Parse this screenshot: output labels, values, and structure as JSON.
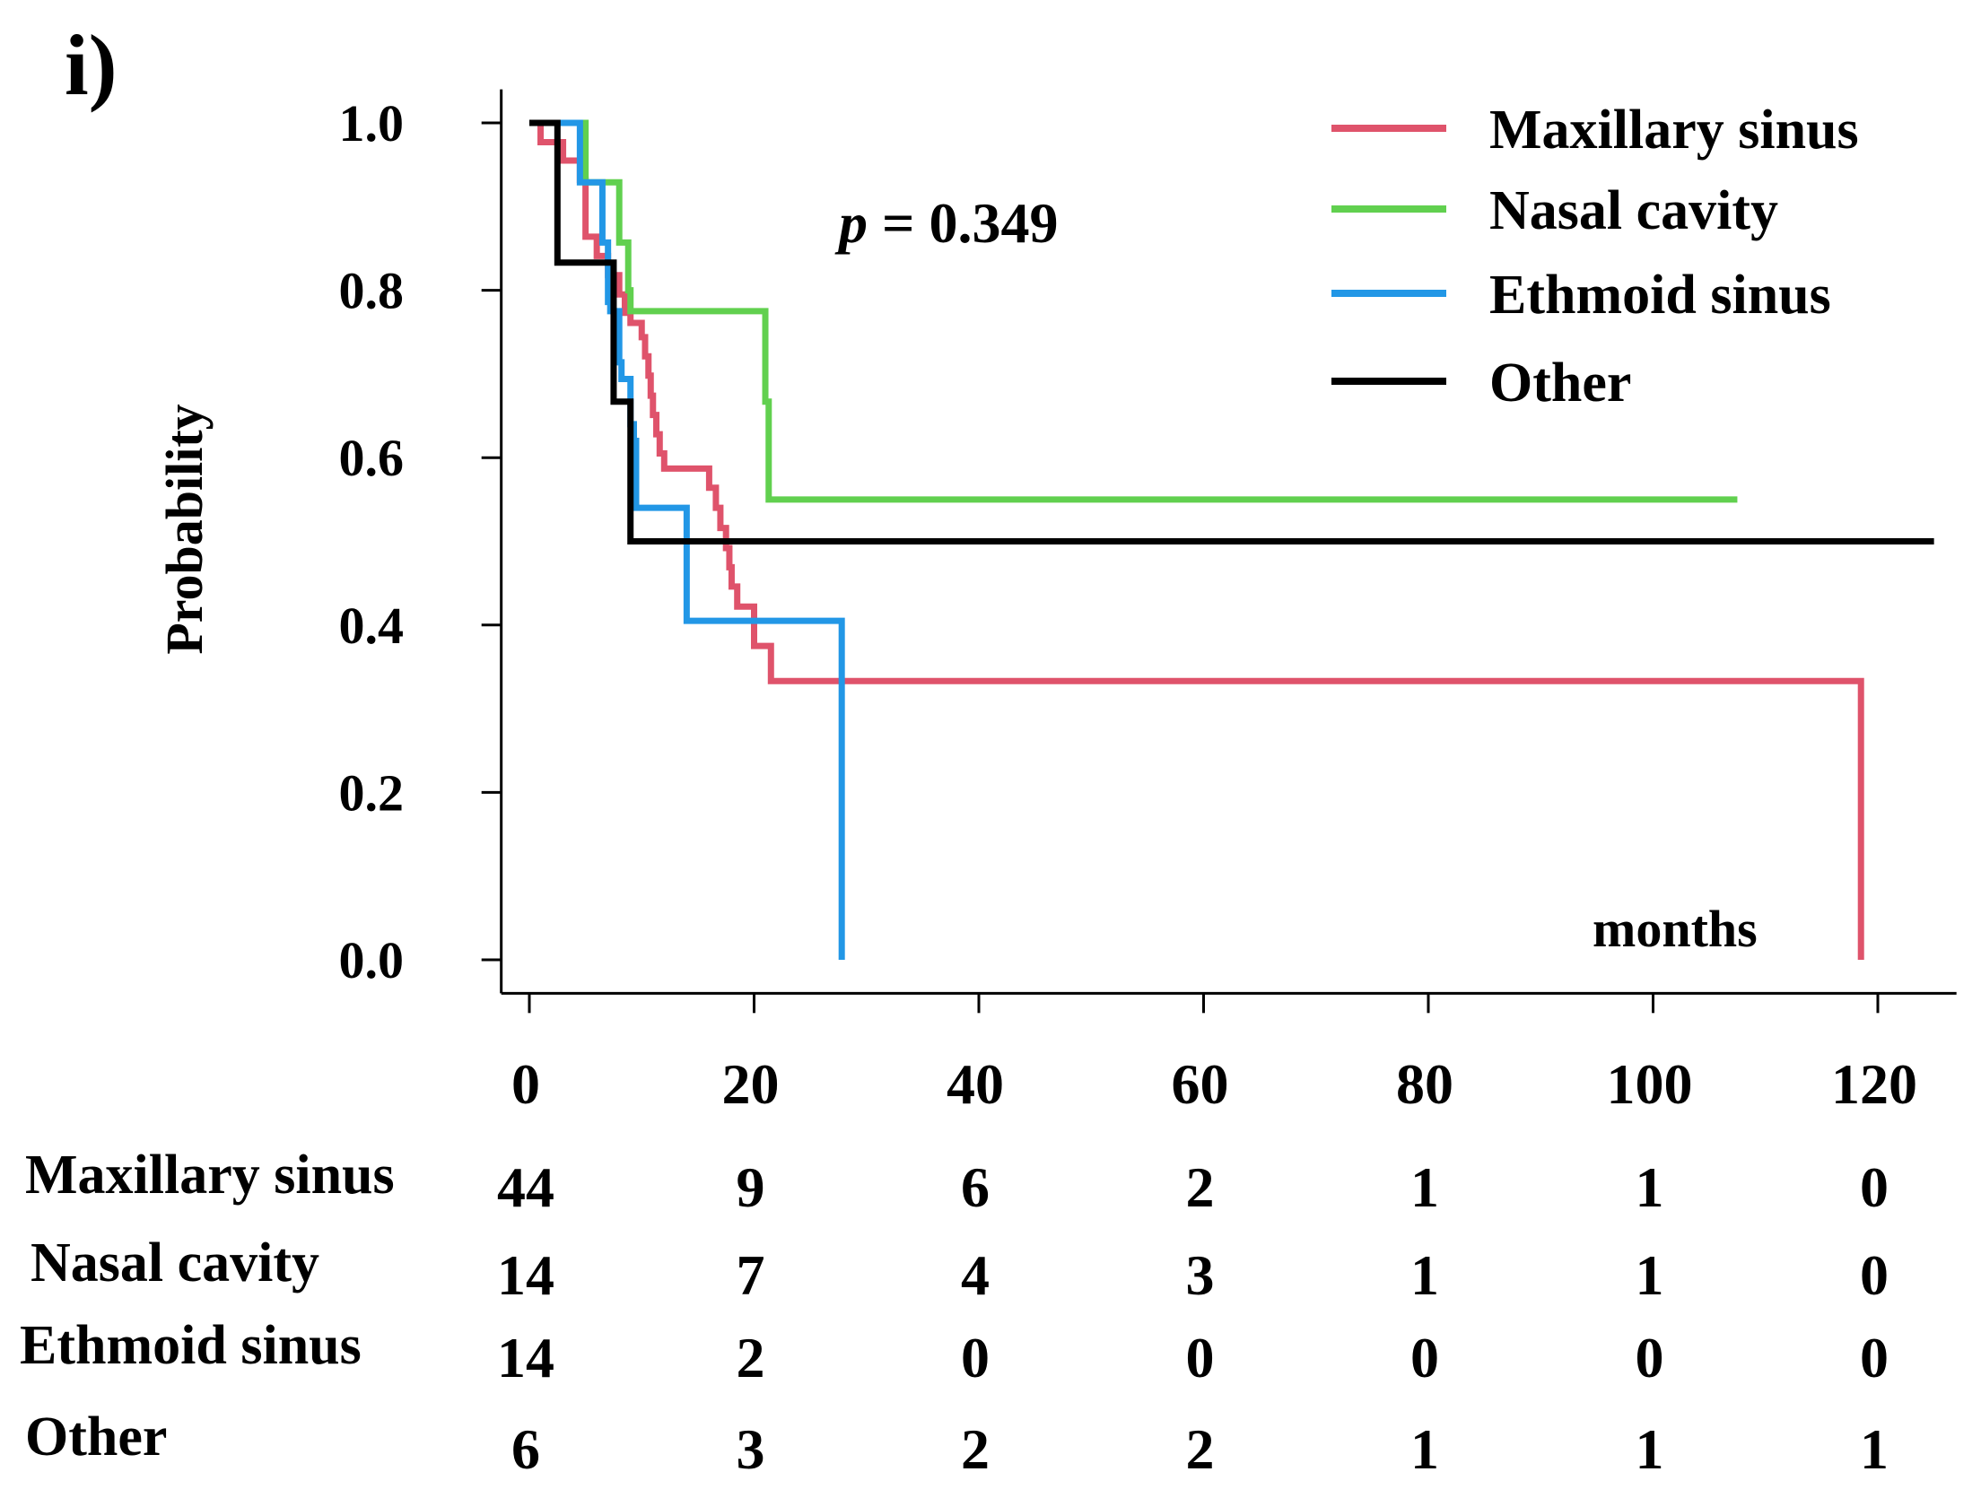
{
  "panel_label": "i)",
  "chart_data": {
    "type": "line",
    "subtype": "kaplan-meier-step",
    "ylabel": "Probability",
    "xlabel": "months",
    "annotation": {
      "p_label": "p",
      "p_value_text": " = 0.349"
    },
    "xlim": [
      -2.5,
      127
    ],
    "ylim": [
      -0.04,
      1.04
    ],
    "x_ticks": [
      "0",
      "20",
      "40",
      "60",
      "80",
      "100",
      "120"
    ],
    "y_ticks": [
      "0.0",
      "0.2",
      "0.4",
      "0.6",
      "0.8",
      "1.0"
    ],
    "legend_position": "top-right",
    "series": [
      {
        "name": "Maxillary sinus",
        "color": "#df536b",
        "steps": [
          [
            0,
            1.0
          ],
          [
            1,
            0.977
          ],
          [
            3,
            0.955
          ],
          [
            4.5,
            0.932
          ],
          [
            5,
            0.864
          ],
          [
            6,
            0.841
          ],
          [
            7,
            0.818
          ],
          [
            8,
            0.795
          ],
          [
            8.5,
            0.773
          ],
          [
            9,
            0.761
          ],
          [
            10,
            0.744
          ],
          [
            10.3,
            0.721
          ],
          [
            10.6,
            0.698
          ],
          [
            10.8,
            0.674
          ],
          [
            11,
            0.651
          ],
          [
            11.3,
            0.628
          ],
          [
            11.6,
            0.605
          ],
          [
            12,
            0.587
          ],
          [
            16,
            0.564
          ],
          [
            16.6,
            0.54
          ],
          [
            17,
            0.516
          ],
          [
            17.5,
            0.492
          ],
          [
            17.8,
            0.469
          ],
          [
            18,
            0.446
          ],
          [
            18.5,
            0.422
          ],
          [
            20,
            0.375
          ],
          [
            21.5,
            0.333
          ],
          [
            118.5,
            0.0
          ]
        ],
        "end": 118.5
      },
      {
        "name": "Nasal cavity",
        "color": "#61d04f",
        "steps": [
          [
            0,
            1.0
          ],
          [
            5,
            0.929
          ],
          [
            8,
            0.857
          ],
          [
            8.8,
            0.8
          ],
          [
            9,
            0.775
          ],
          [
            21,
            0.667
          ],
          [
            21.3,
            0.55
          ]
        ],
        "end": 107.5
      },
      {
        "name": "Ethmoid sinus",
        "color": "#2297e6",
        "steps": [
          [
            0,
            1.0
          ],
          [
            4.5,
            0.929
          ],
          [
            6.5,
            0.857
          ],
          [
            7,
            0.786
          ],
          [
            7.2,
            0.775
          ],
          [
            8,
            0.714
          ],
          [
            8.2,
            0.694
          ],
          [
            9,
            0.64
          ],
          [
            9.3,
            0.62
          ],
          [
            9.5,
            0.54
          ],
          [
            14,
            0.405
          ],
          [
            27.8,
            0.0
          ]
        ],
        "end": 27.8
      },
      {
        "name": "Other",
        "color": "#000000",
        "steps": [
          [
            0,
            1.0
          ],
          [
            2.5,
            0.833
          ],
          [
            7.5,
            0.667
          ],
          [
            9,
            0.5
          ]
        ],
        "end": 125
      }
    ]
  },
  "risk_table": {
    "times": [
      0,
      20,
      40,
      60,
      80,
      100,
      120
    ],
    "rows": [
      {
        "label": "Maxillary sinus",
        "counts": [
          "44",
          "9",
          "6",
          "2",
          "1",
          "1",
          "0"
        ]
      },
      {
        "label": "Nasal cavity",
        "counts": [
          "14",
          "7",
          "4",
          "3",
          "1",
          "1",
          "0"
        ]
      },
      {
        "label": "Ethmoid sinus",
        "counts": [
          "14",
          "2",
          "0",
          "0",
          "0",
          "0",
          "0"
        ]
      },
      {
        "label": "Other",
        "counts": [
          "6",
          "3",
          "2",
          "2",
          "1",
          "1",
          "1"
        ]
      }
    ]
  }
}
